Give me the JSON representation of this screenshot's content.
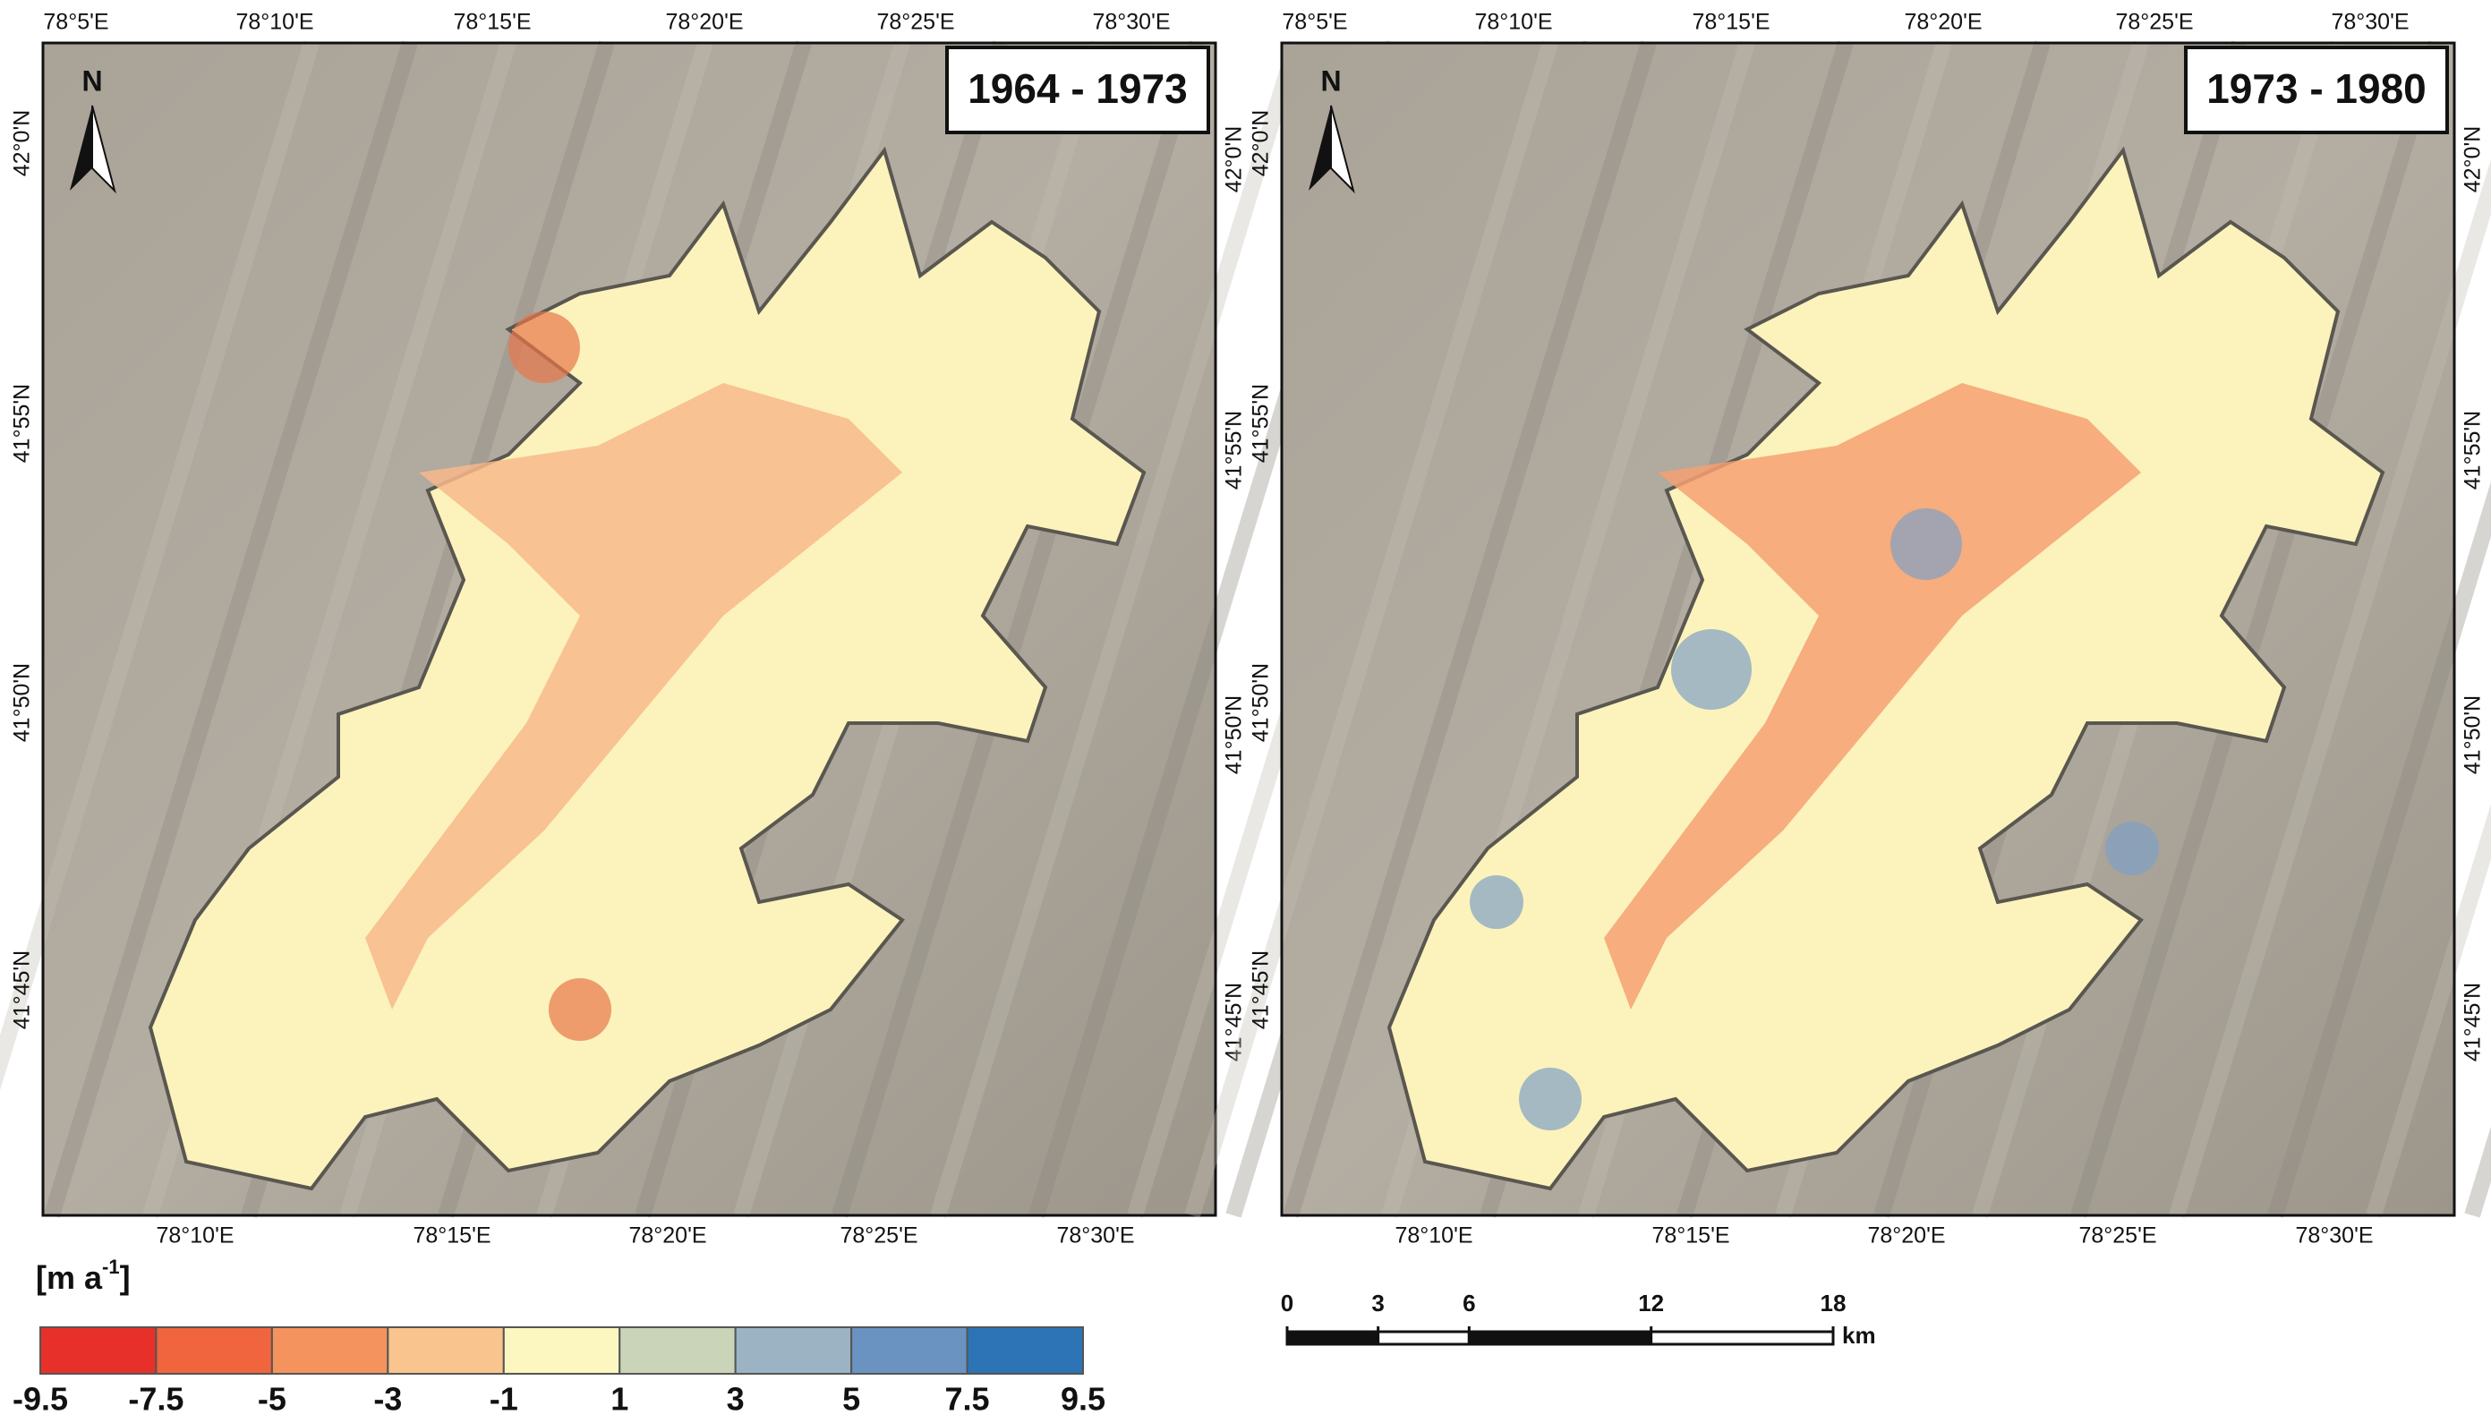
{
  "panels": [
    {
      "title": "1964 - 1973",
      "north": "N",
      "top_labels": [
        "78°5'E",
        "78°10'E",
        "78°15'E",
        "78°20'E",
        "78°25'E",
        "78°30'E"
      ],
      "bottom_labels": [
        "78°10'E",
        "78°15'E",
        "78°20'E",
        "78°25'E",
        "78°30'E"
      ],
      "left_labels": [
        "42°0'N",
        "41°55'N",
        "41°50'N",
        "41°45'N"
      ],
      "right_labels": [
        "42°0'N",
        "41°55'N",
        "41°50'N",
        "41°45'N"
      ]
    },
    {
      "title": "1973 - 1980",
      "north": "N",
      "top_labels": [
        "78°5'E",
        "78°10'E",
        "78°15'E",
        "78°20'E",
        "78°25'E",
        "78°30'E"
      ],
      "bottom_labels": [
        "78°10'E",
        "78°15'E",
        "78°20'E",
        "78°25'E",
        "78°30'E"
      ],
      "left_labels": [
        "42°0'N",
        "41°55'N",
        "41°50'N",
        "41°45'N"
      ],
      "right_labels": [
        "42°0'N",
        "41°55'N",
        "41°50'N",
        "41°45'N"
      ]
    }
  ],
  "legend": {
    "unit_parts": [
      "[m a",
      "-1",
      "]"
    ],
    "colors": [
      "#e8302a",
      "#f0653e",
      "#f5935f",
      "#f9c48e",
      "#fcf6c0",
      "#c9d4b9",
      "#9cb3c4",
      "#6a93c2",
      "#2c74b5"
    ],
    "breaks": [
      -9.5,
      -7.5,
      -5,
      -3,
      -1,
      1,
      3,
      5,
      7.5,
      9.5
    ]
  },
  "scale_bar": {
    "ticks": [
      0,
      3,
      6,
      12,
      18
    ],
    "unit": "km"
  }
}
